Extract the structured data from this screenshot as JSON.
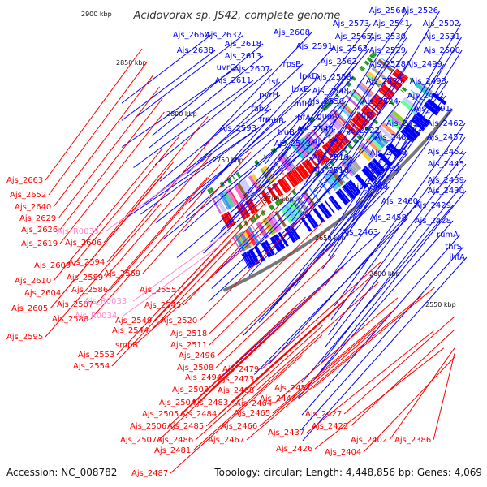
{
  "title": "Acidovorax sp. JS42, complete genome",
  "accession": "Accession: NC_008782",
  "summary": "Topology: circular; Length: 4,448,856 bp; Genes: 4,069",
  "colors": {
    "forward_genes": "#0000ff",
    "reverse_genes": "#ff0000",
    "rna_genes": "#ff88cc",
    "backbone": "#777777"
  },
  "kbp_ticks": [
    "2900 kbp",
    "2850 kbp",
    "2800 kbp",
    "2750 kbp",
    "2700 kbp",
    "2650 kbp",
    "2600 kbp",
    "2550 kbp"
  ],
  "labels_forward": [
    "Ajs_2564",
    "Ajs_2526",
    "Ajs_2573",
    "Ajs_2541",
    "Ajs_2502",
    "Ajs_2660",
    "Ajs_2632",
    "Ajs_2608",
    "Ajs_2565",
    "Ajs_2530",
    "Ajs_2531",
    "Ajs_2618",
    "Ajs_2591",
    "Ajs_2563",
    "Ajs_2529",
    "Ajs_2500",
    "Ajs_2638",
    "Ajs_2613",
    "Ajs_2562",
    "Ajs_2528",
    "Ajs_2499",
    "uvrC",
    "Ajs_2607",
    "rpsB",
    "Ajs_2558",
    "Ajs_2493",
    "Ajs_2611",
    "tsf",
    "lpxD",
    "Ajs_2525",
    "Ajs_2548",
    "Ajs_2492",
    "pvrH",
    "lpxB",
    "Ajs_2550",
    "Ajs_2524",
    "Ajs_2491",
    "fabZ",
    "infB",
    "ligD",
    "frr",
    "rnhB",
    "rbfA",
    "guaA",
    "Ajs_2522",
    "Ajs_2490",
    "Ajs_2462",
    "Ajs_2593",
    "truB",
    "Ajs_2546",
    "Ajs_2489",
    "Ajs_2457",
    "Ajs_2543",
    "Ajs_2521",
    "Ajs_2488",
    "Ajs_2452",
    "Ajs_2519",
    "Ajs_2445",
    "Ajs_2510",
    "Ajs_2482",
    "Ajs_2439",
    "Ajs_2480",
    "Ajs_2430",
    "Ajs_2460",
    "Ajs_2429",
    "Ajs_2458",
    "Ajs_2428",
    "Ajs_2463",
    "rumA",
    "thrS",
    "ihfA"
  ],
  "labels_reverse": [
    "Ajs_2663",
    "Ajs_2652",
    "Ajs_2640",
    "Ajs_2629",
    "Ajs_2626",
    "Ajs_2619",
    "Ajs_2606",
    "Ajs_2609",
    "Ajs_2594",
    "Ajs_2569",
    "Ajs_2610",
    "Ajs_2589",
    "Ajs_2604",
    "Ajs_2586",
    "Ajs_2555",
    "Ajs_2605",
    "Ajs_2587",
    "Ajs_2545",
    "Ajs_2588",
    "Ajs_2549",
    "Ajs_2520",
    "Ajs_2595",
    "Ajs_2544",
    "Ajs_2518",
    "smpB",
    "Ajs_2511",
    "Ajs_2553",
    "Ajs_2496",
    "Ajs_2554",
    "Ajs_2508",
    "Ajs_2479",
    "Ajs_2494",
    "Ajs_2473",
    "Ajs_2503",
    "Ajs_2468",
    "Ajs_2451",
    "Ajs_2504",
    "Ajs_2483",
    "Ajs_2464",
    "Ajs_2444",
    "Ajs_2505",
    "Ajs_2484",
    "Ajs_2465",
    "Ajs_2506",
    "Ajs_2485",
    "Ajs_2466",
    "Ajs_2437",
    "Ajs_2427",
    "Ajs_2507",
    "Ajs_2486",
    "Ajs_2467",
    "Ajs_2422",
    "Ajs_2481",
    "Ajs_2426",
    "Ajs_2402",
    "Ajs_2386",
    "Ajs_2404",
    "Ajs_2487"
  ],
  "labels_rna": [
    "Ajs_R0035",
    "Ajs_R0033",
    "Ajs_R0034"
  ]
}
